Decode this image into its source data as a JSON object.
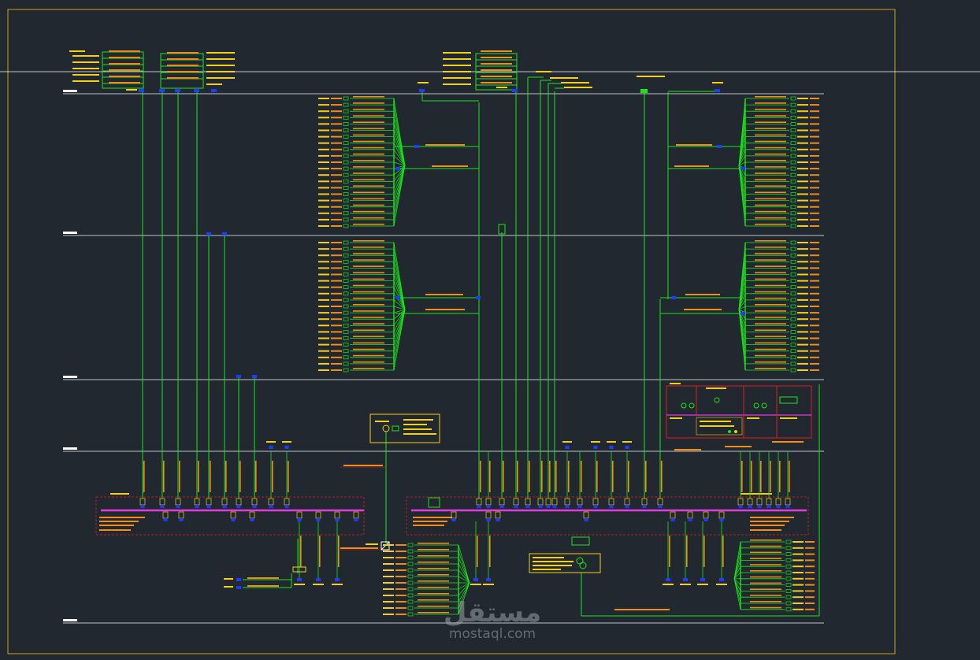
{
  "drawing": {
    "background": "#212830",
    "frame_color": "#d4a017",
    "colors": {
      "floor_line": "#bfc4c8",
      "riser": "#19e619",
      "label_yellow": "#f2d018",
      "label_orange": "#f28c18",
      "breaker_blue": "#1e3cff",
      "busbar": "#e03ce0",
      "panel_red": "#e01e1e",
      "cross_line": "#ffffff"
    },
    "floors": [
      "roof",
      "second",
      "first",
      "ground",
      "basement"
    ],
    "icons": [
      "breaker-icon",
      "transformer-icon",
      "generator-icon",
      "panel-icon"
    ]
  },
  "watermark": {
    "arabic": "مستقل",
    "latin": "mostaql.com"
  }
}
